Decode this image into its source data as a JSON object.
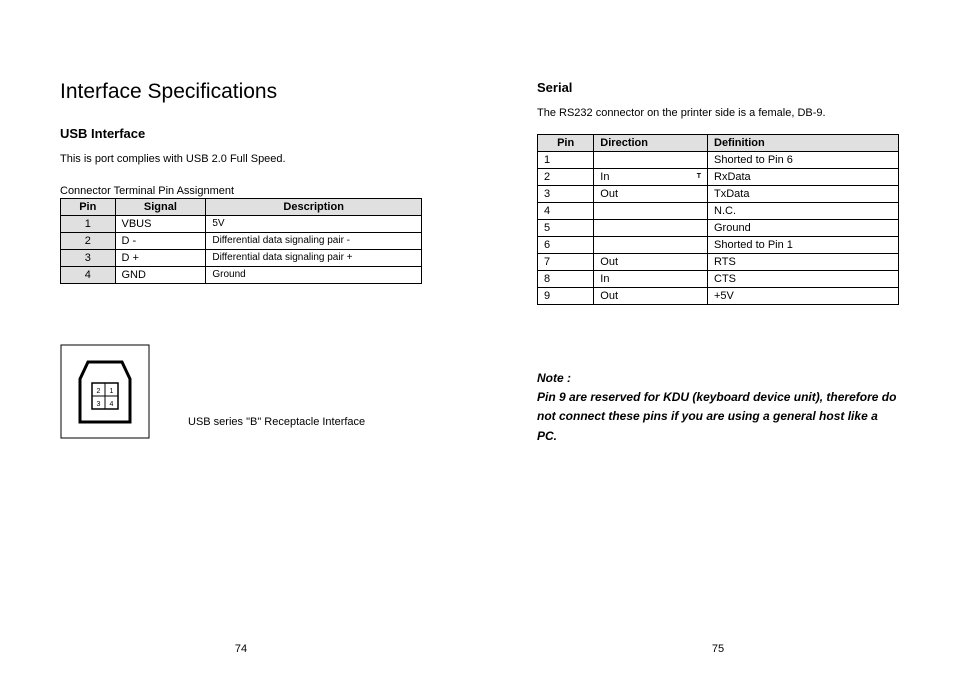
{
  "left": {
    "title": "Interface Specifications",
    "section": "USB Interface",
    "intro": "This is port complies with USB 2.0 Full Speed.",
    "table_caption": "Connector Terminal Pin Assignment",
    "usb_table": {
      "headers": [
        "Pin",
        "Signal",
        "Description"
      ],
      "rows": [
        [
          "1",
          "VBUS",
          "5V"
        ],
        [
          "2",
          "D -",
          "Differential data signaling pair -"
        ],
        [
          "3",
          "D +",
          "Differential data signaling pair +"
        ],
        [
          "4",
          "GND",
          "Ground"
        ]
      ]
    },
    "usb_diagram_caption": "USB series \"B\" Receptacle Interface",
    "usb_diagram_pins": [
      "2",
      "1",
      "3",
      "4"
    ],
    "page_number": "74"
  },
  "right": {
    "section": "Serial",
    "intro": "The RS232 connector on the printer side is a female, DB-9.",
    "serial_table": {
      "headers": [
        "Pin",
        "Direction",
        "Definition"
      ],
      "rows": [
        {
          "pin": "1",
          "dir": "",
          "def": "Shorted to Pin 6",
          "annot": ""
        },
        {
          "pin": "2",
          "dir": "In",
          "def": "RxData",
          "annot": "T"
        },
        {
          "pin": "3",
          "dir": "Out",
          "def": "TxData",
          "annot": ""
        },
        {
          "pin": "4",
          "dir": "",
          "def": "N.C.",
          "annot": ""
        },
        {
          "pin": "5",
          "dir": "",
          "def": "Ground",
          "annot": ""
        },
        {
          "pin": "6",
          "dir": "",
          "def": "Shorted to Pin 1",
          "annot": ""
        },
        {
          "pin": "7",
          "dir": "Out",
          "def": "RTS",
          "annot": ""
        },
        {
          "pin": "8",
          "dir": "In",
          "def": "CTS",
          "annot": ""
        },
        {
          "pin": "9",
          "dir": "Out",
          "def": "+5V",
          "annot": ""
        }
      ]
    },
    "note_label": "Note :",
    "note_body": "Pin 9 are reserved for KDU (keyboard device unit), therefore do not connect these pins if you are using a general host like a PC.",
    "page_number": "75"
  }
}
